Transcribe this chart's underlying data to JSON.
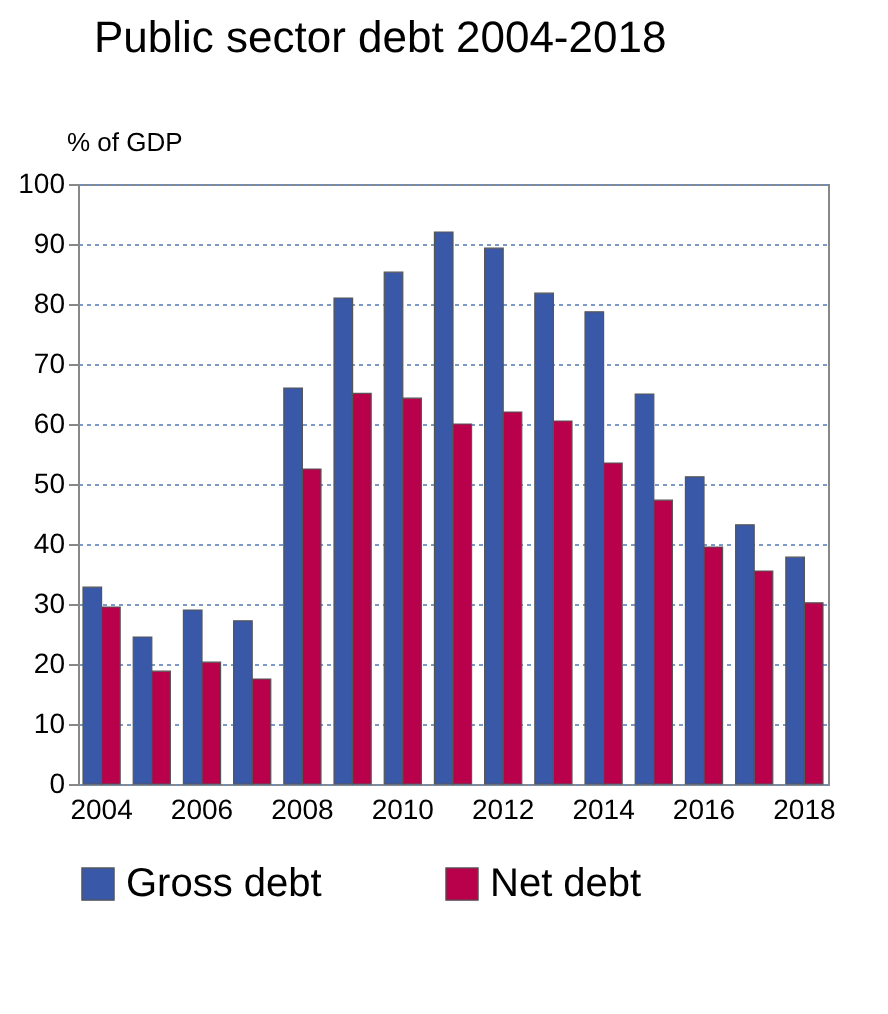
{
  "chart_data": {
    "type": "bar",
    "title": "Public sector debt 2004-2018",
    "ylabel": "% of GDP",
    "categories": [
      "2004",
      null,
      "2006",
      null,
      "2008",
      null,
      "2010",
      null,
      "2012",
      null,
      "2014",
      null,
      "2016",
      null,
      "2018"
    ],
    "series": [
      {
        "name": "Gross debt",
        "color": "#3a58a8",
        "values": [
          32.8,
          24.5,
          29,
          27.2,
          66,
          81,
          85.3,
          92,
          89.3,
          81.8,
          78.7,
          65,
          51.2,
          43.2,
          37.8
        ]
      },
      {
        "name": "Net debt",
        "color": "#b8004b",
        "values": [
          29.5,
          18.8,
          20.3,
          17.5,
          52.5,
          65.1,
          64.3,
          60,
          62,
          60.5,
          53.5,
          47.3,
          39.5,
          35.5,
          30.2
        ]
      }
    ],
    "ylim": [
      0,
      100
    ],
    "yticks": [
      0,
      10,
      20,
      30,
      40,
      50,
      60,
      70,
      80,
      90,
      100
    ],
    "grid": "y",
    "legend": "bottom"
  }
}
